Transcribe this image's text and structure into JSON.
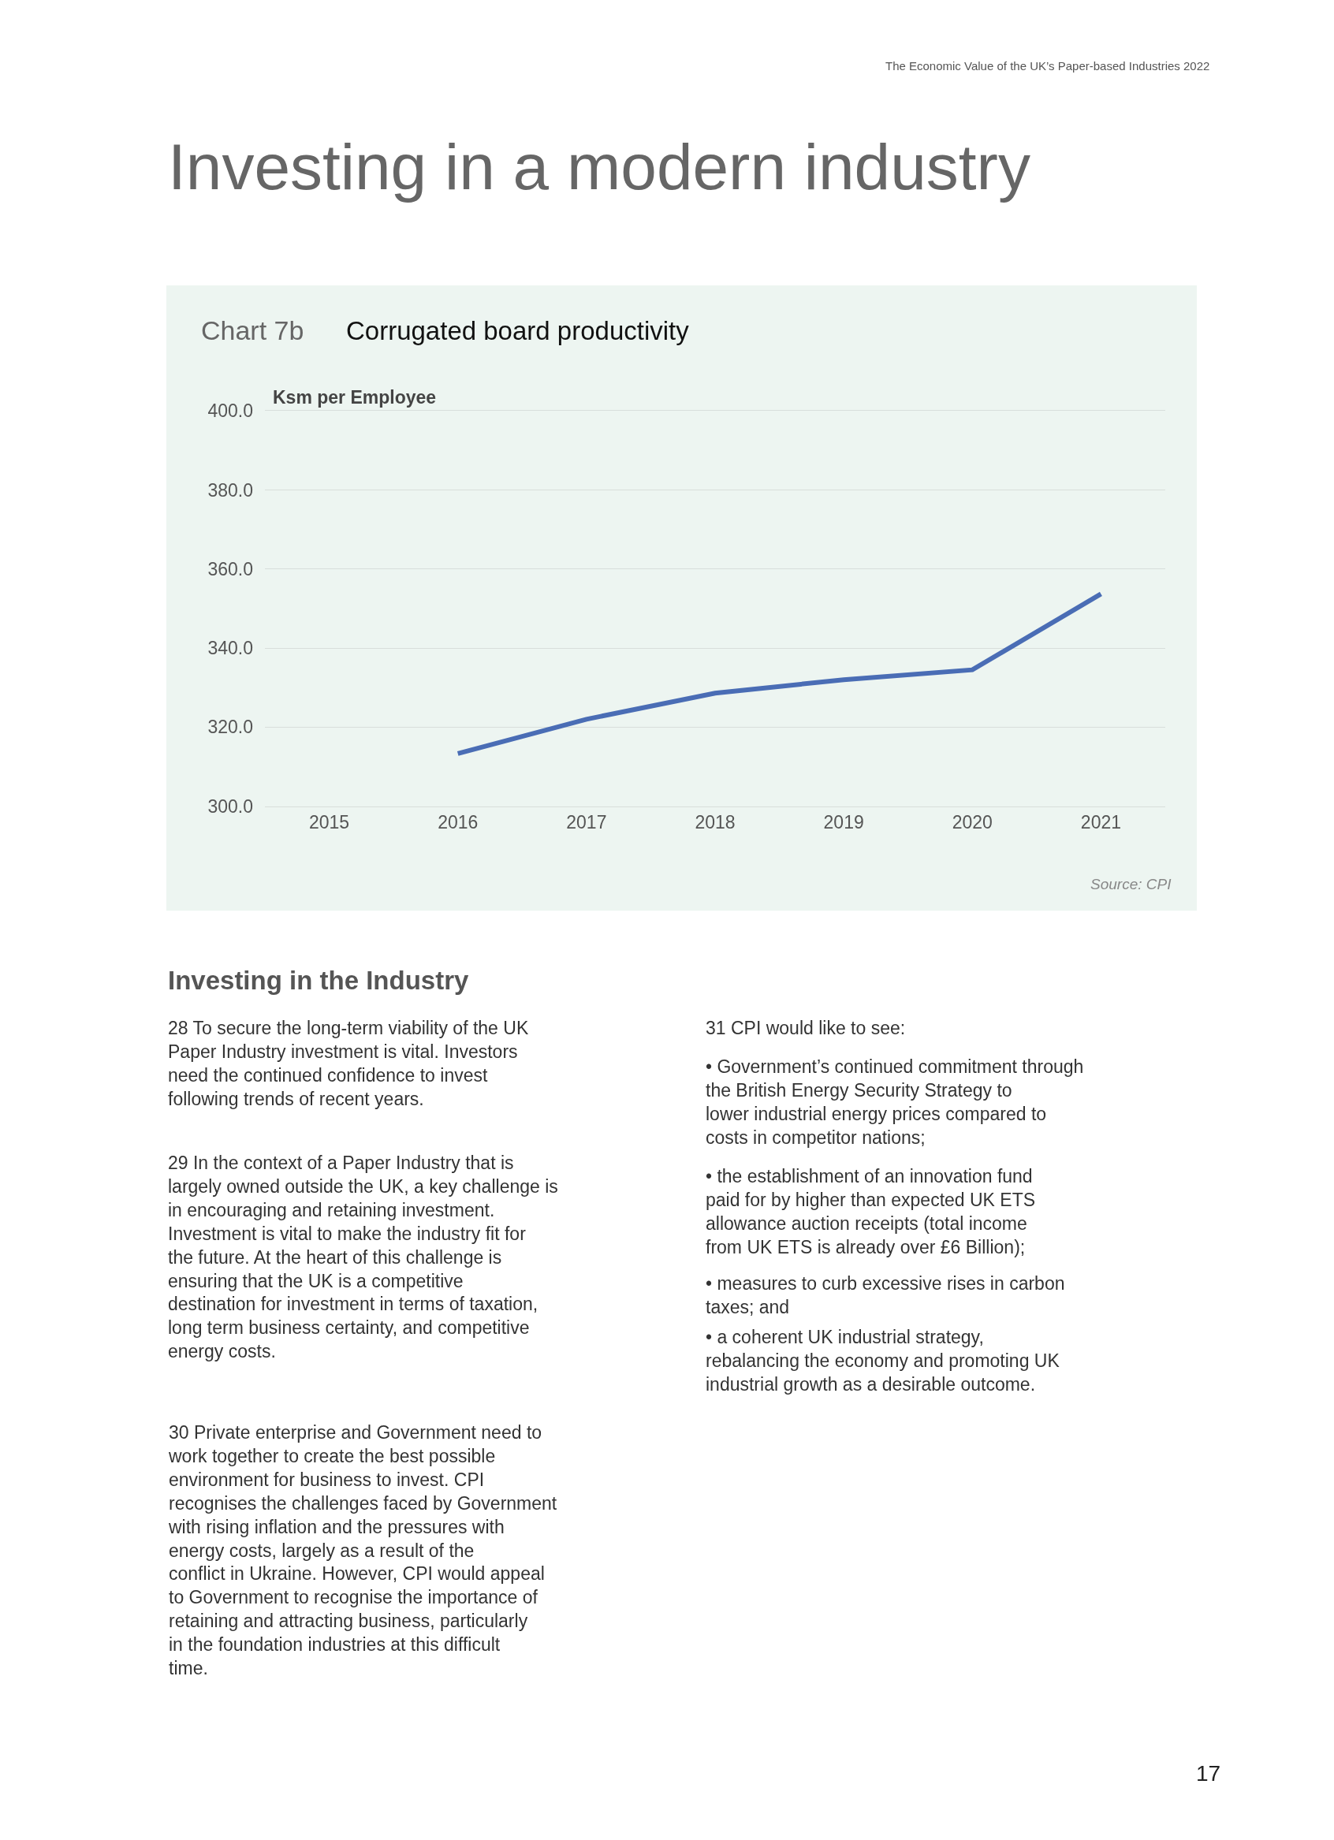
{
  "chart_data": {
    "type": "line",
    "title": "Corrugated board productivity",
    "ylabel": "Ksm per Employee",
    "categories": [
      "2015",
      "2016",
      "2017",
      "2018",
      "2019",
      "2020",
      "2021"
    ],
    "series": [
      {
        "color": "#4a6db5",
        "values": [
          null,
          313.3,
          322.0,
          328.6,
          332.0,
          334.5,
          353.7
        ]
      }
    ],
    "ylim": [
      300,
      400
    ],
    "yticks": [
      {
        "value": 300,
        "label": "300.0"
      },
      {
        "value": 320,
        "label": "320.0"
      },
      {
        "value": 340,
        "label": "340.0"
      },
      {
        "value": 360,
        "label": "360.0"
      },
      {
        "value": 380,
        "label": "380.0"
      },
      {
        "value": 400,
        "label": "400.0"
      }
    ],
    "grid": "y",
    "marker": "none",
    "line_style": "solid",
    "annotations": [
      "The Economic Value of the UK’s Paper-based Industries 2022",
      "Investing in a modern industry",
      "Chart 7b",
      "Source: CPI",
      "Investing in the Industry",
      "28 To secure the long-term viability of the UK Paper Industry investment is vital. Investors need the continued confidence to invest following trends of recent years.",
      "29 In the context of a Paper Industry that is largely owned outside the UK, a key challenge is in encouraging and retaining investment. Investment is vital to make the industry fit for the future. At the heart of this challenge is ensuring that the UK is a competitive destination for investment in terms of taxation, long term business certainty, and competitive energy costs.",
      "30 Private enterprise and Government need to work together to create the best possible environment for business to invest. CPI recognises the challenges faced by Government with rising inflation and the pressures with energy costs, largely as a result of the conflict in Ukraine. However, CPI would appeal to Government to recognise the importance of retaining and attracting business, particularly in the foundation industries at this difficult time.",
      "31 CPI would like to see:",
      "• Government’s continued commitment through the British Energy Security Strategy to lower industrial energy prices compared to costs in competitor nations;",
      "• the establishment of an innovation fund paid for by higher than expected UK ETS allowance auction receipts (total income from UK ETS is already over £6 Billion);",
      "• measures to curb excessive rises in carbon taxes; and",
      "• a coherent UK industrial strategy, rebalancing the economy and promoting UK industrial growth as a desirable outcome.",
      "17"
    ]
  }
}
